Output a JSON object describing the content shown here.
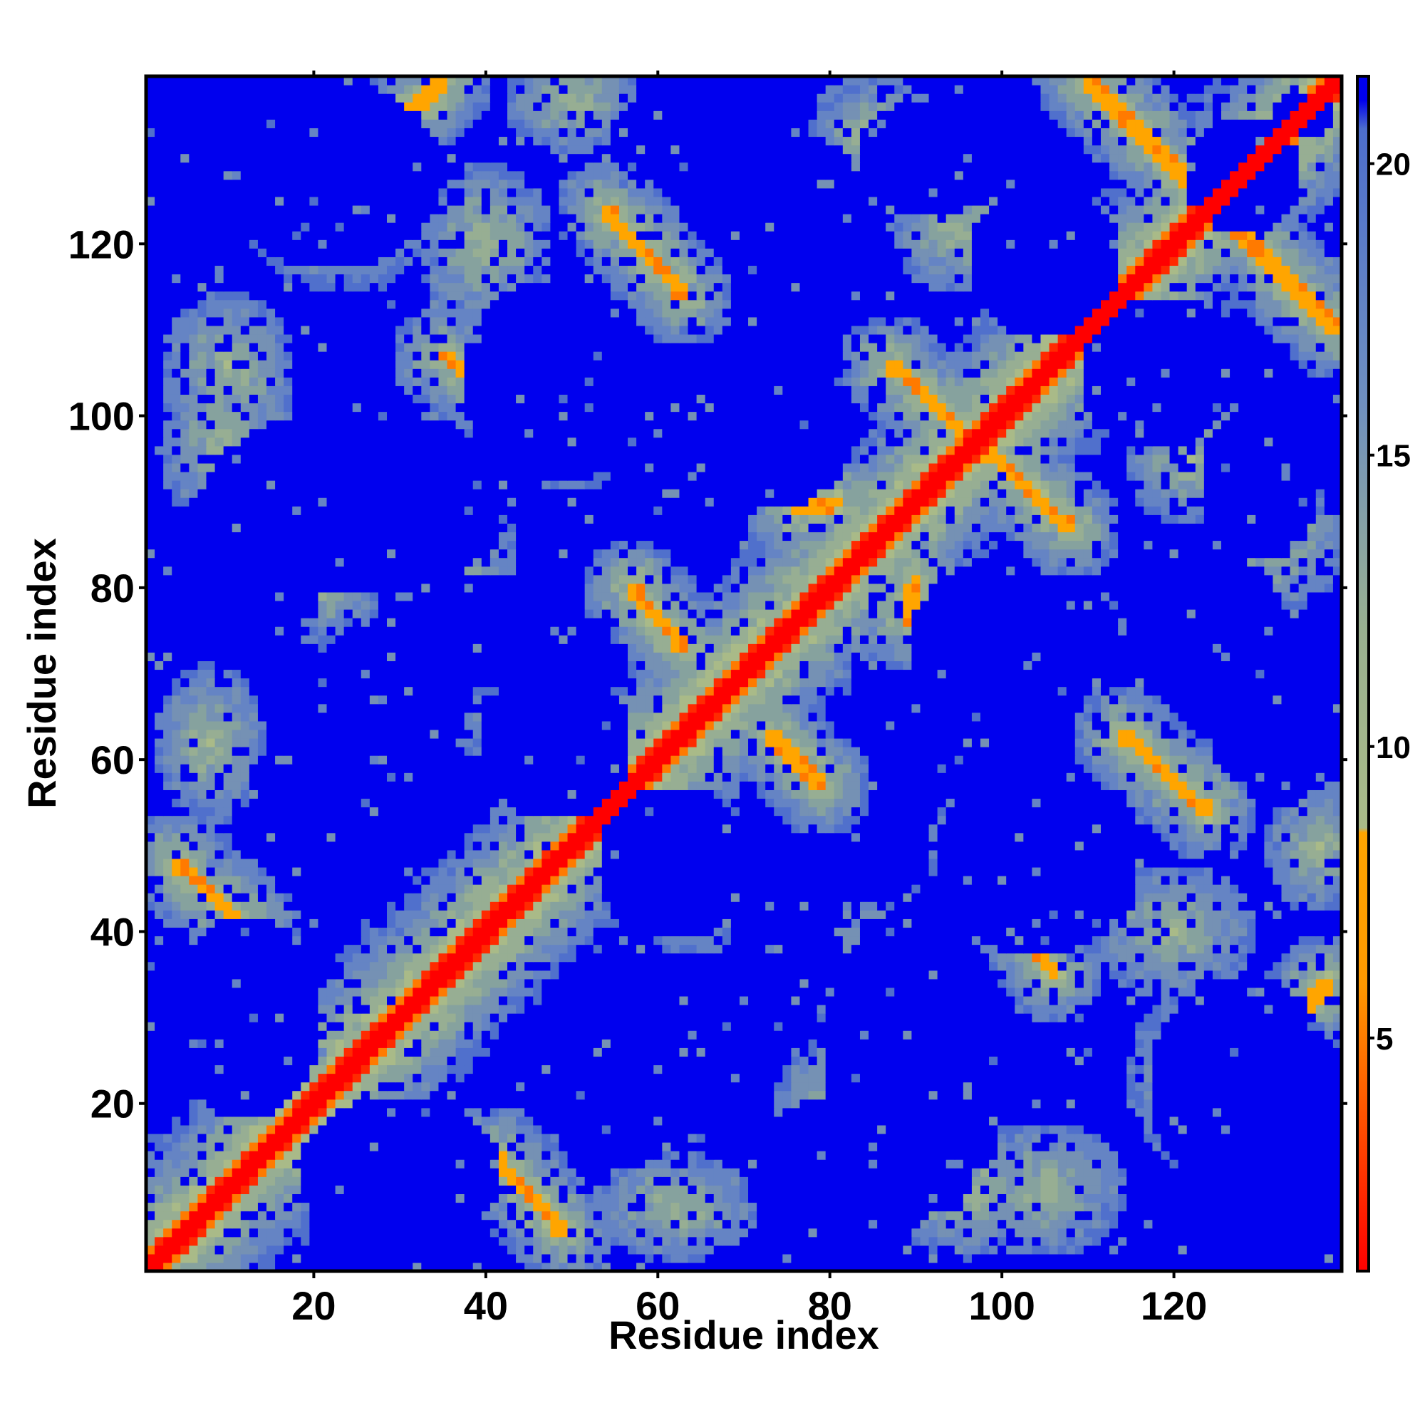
{
  "chart_data": {
    "type": "heatmap",
    "title": "",
    "xlabel": "Residue index",
    "ylabel": "Residue index",
    "xlim": [
      1,
      139
    ],
    "ylim": [
      1,
      139
    ],
    "n_residues": 139,
    "x_ticks": [
      20,
      40,
      60,
      80,
      100,
      120
    ],
    "y_ticks": [
      20,
      40,
      60,
      80,
      100,
      120
    ],
    "colorbar": {
      "range": [
        1,
        21.5
      ],
      "ticks": [
        5,
        10,
        15,
        20
      ],
      "colors": [
        {
          "value": 1,
          "color": "#ff0000"
        },
        {
          "value": 6,
          "color": "#ff9900"
        },
        {
          "value": 8.5,
          "color": "#ffa500"
        },
        {
          "value": 8.6,
          "color": "#aabb88"
        },
        {
          "value": 12,
          "color": "#99b090"
        },
        {
          "value": 16,
          "color": "#6e8fc0"
        },
        {
          "value": 20.6,
          "color": "#4d6ecc"
        },
        {
          "value": 21,
          "color": "#0000ee"
        }
      ]
    },
    "diagonal": {
      "value": 1
    },
    "contact_bands": [
      {
        "x1": 4,
        "y1": 48,
        "x2": 13,
        "y2": 40,
        "value": 6
      },
      {
        "x1": 41,
        "y1": 14,
        "x2": 49,
        "y2": 5,
        "value": 6
      },
      {
        "x1": 31,
        "y1": 135,
        "x2": 35,
        "y2": 139,
        "value": 6
      },
      {
        "x1": 35,
        "y1": 107,
        "x2": 50,
        "y2": 97,
        "value": 6
      },
      {
        "x1": 106,
        "y1": 35,
        "x2": 97,
        "y2": 50,
        "value": 6
      },
      {
        "x1": 54,
        "y1": 124,
        "x2": 63,
        "y2": 114,
        "value": 6
      },
      {
        "x1": 114,
        "y1": 63,
        "x2": 124,
        "y2": 54,
        "value": 6
      },
      {
        "x1": 57,
        "y1": 80,
        "x2": 63,
        "y2": 73,
        "value": 6
      },
      {
        "x1": 73,
        "y1": 63,
        "x2": 79,
        "y2": 57,
        "value": 6
      },
      {
        "x1": 87,
        "y1": 106,
        "x2": 108,
        "y2": 87,
        "value": 6
      },
      {
        "x1": 110,
        "y1": 139,
        "x2": 139,
        "y2": 110,
        "value": 6
      },
      {
        "x1": 76,
        "y1": 89,
        "x2": 81,
        "y2": 90,
        "value": 6
      },
      {
        "x1": 89,
        "y1": 76,
        "x2": 90,
        "y2": 81,
        "value": 6
      },
      {
        "x1": 134,
        "y1": 30,
        "x2": 138,
        "y2": 34,
        "value": 6
      },
      {
        "x1": 50,
        "y1": 52,
        "x2": 55,
        "y2": 54,
        "value": 6
      }
    ],
    "contact_blobs": [
      {
        "x": 10,
        "y": 96,
        "sx": 5,
        "sy": 6
      },
      {
        "x": 96,
        "y": 10,
        "sx": 6,
        "sy": 5
      },
      {
        "x": 23,
        "y": 124,
        "sx": 7,
        "sy": 6
      },
      {
        "x": 124,
        "y": 23,
        "sx": 6,
        "sy": 7
      },
      {
        "x": 40,
        "y": 120,
        "sx": 5,
        "sy": 6
      },
      {
        "x": 120,
        "y": 40,
        "sx": 6,
        "sy": 5
      },
      {
        "x": 78,
        "y": 122,
        "sx": 4,
        "sy": 6
      },
      {
        "x": 122,
        "y": 78,
        "sx": 6,
        "sy": 4
      },
      {
        "x": 8,
        "y": 62,
        "sx": 4,
        "sy": 6
      },
      {
        "x": 62,
        "y": 8,
        "sx": 6,
        "sy": 4
      },
      {
        "x": 36,
        "y": 84,
        "sx": 5,
        "sy": 5
      },
      {
        "x": 84,
        "y": 36,
        "sx": 5,
        "sy": 5
      },
      {
        "x": 95,
        "y": 122,
        "sx": 5,
        "sy": 5
      },
      {
        "x": 122,
        "y": 95,
        "sx": 5,
        "sy": 5
      },
      {
        "x": 20,
        "y": 80,
        "sx": 5,
        "sy": 4
      },
      {
        "x": 80,
        "y": 20,
        "sx": 4,
        "sy": 5
      },
      {
        "x": 105,
        "y": 10,
        "sx": 6,
        "sy": 5
      },
      {
        "x": 10,
        "y": 105,
        "sx": 5,
        "sy": 6
      },
      {
        "x": 45,
        "y": 64,
        "sx": 5,
        "sy": 4
      },
      {
        "x": 64,
        "y": 45,
        "sx": 4,
        "sy": 5
      },
      {
        "x": 132,
        "y": 85,
        "sx": 5,
        "sy": 5
      },
      {
        "x": 85,
        "y": 132,
        "sx": 5,
        "sy": 5
      },
      {
        "x": 137,
        "y": 50,
        "sx": 4,
        "sy": 5
      },
      {
        "x": 50,
        "y": 137,
        "sx": 5,
        "sy": 4
      }
    ],
    "empty_regions": [
      {
        "x": 22,
        "y": 128,
        "rx": 13,
        "ry": 11
      },
      {
        "x": 128,
        "y": 22,
        "rx": 11,
        "ry": 13
      },
      {
        "x": 48,
        "y": 104,
        "rx": 11,
        "ry": 12
      },
      {
        "x": 104,
        "y": 48,
        "rx": 12,
        "ry": 11
      },
      {
        "x": 25,
        "y": 55,
        "rx": 13,
        "ry": 10
      },
      {
        "x": 55,
        "y": 25,
        "rx": 10,
        "ry": 13
      },
      {
        "x": 76,
        "y": 122,
        "rx": 9,
        "ry": 11
      },
      {
        "x": 122,
        "y": 76,
        "rx": 11,
        "ry": 9
      },
      {
        "x": 72,
        "y": 98,
        "rx": 11,
        "ry": 9
      },
      {
        "x": 98,
        "y": 72,
        "rx": 9,
        "ry": 11
      },
      {
        "x": 105,
        "y": 118,
        "rx": 9,
        "ry": 9
      },
      {
        "x": 118,
        "y": 105,
        "rx": 9,
        "ry": 9
      },
      {
        "x": 128,
        "y": 128,
        "rx": 7,
        "ry": 7
      },
      {
        "x": 130,
        "y": 92,
        "rx": 7,
        "ry": 9
      },
      {
        "x": 92,
        "y": 130,
        "rx": 9,
        "ry": 7
      },
      {
        "x": 62,
        "y": 48,
        "rx": 9,
        "ry": 9
      },
      {
        "x": 48,
        "y": 62,
        "rx": 9,
        "ry": 9
      },
      {
        "x": 12,
        "y": 82,
        "rx": 9,
        "ry": 12
      },
      {
        "x": 82,
        "y": 12,
        "rx": 12,
        "ry": 9
      },
      {
        "x": 40,
        "y": 75,
        "rx": 10,
        "ry": 7
      },
      {
        "x": 75,
        "y": 40,
        "rx": 7,
        "ry": 10
      },
      {
        "x": 62,
        "y": 132,
        "rx": 8,
        "ry": 6
      },
      {
        "x": 132,
        "y": 62,
        "rx": 6,
        "ry": 8
      },
      {
        "x": 12,
        "y": 30,
        "rx": 9,
        "ry": 12
      },
      {
        "x": 30,
        "y": 12,
        "rx": 12,
        "ry": 9
      },
      {
        "x": 90,
        "y": 25,
        "rx": 11,
        "ry": 18
      },
      {
        "x": 25,
        "y": 90,
        "rx": 18,
        "ry": 11
      },
      {
        "x": 135,
        "y": 135,
        "rx": 4,
        "ry": 3
      }
    ]
  }
}
